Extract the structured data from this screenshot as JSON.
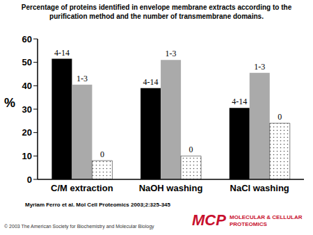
{
  "chart_data": {
    "type": "bar",
    "title": "Percentage of proteins identified in envelope membrane extracts according to the purification method and the number of transmembrane domains.",
    "y_label": "%",
    "categories": [
      "C/M extraction",
      "NaOH washing",
      "NaCl washing"
    ],
    "series": [
      {
        "name": "4-14",
        "color": "#000000",
        "values": [
          51.5,
          39,
          30.5
        ]
      },
      {
        "name": "1-3",
        "color": "#aaaaaa",
        "values": [
          40.5,
          51,
          45.5
        ]
      },
      {
        "name": "0",
        "color": "#555555",
        "values": [
          8,
          10,
          24
        ]
      }
    ],
    "ylim": [
      0,
      60
    ],
    "yticks": [
      0,
      10,
      20,
      30,
      40,
      50,
      60
    ],
    "grid": false
  },
  "source": "Myriam Ferro et al. Mol Cell Proteomics 2003;2:325-345",
  "copyright": "© 2003 The American Society for Biochemistry and Molecular Biology",
  "journal_logo": "MCP",
  "journal_name": [
    "MOLECULAR & CELLULAR",
    "PROTEOMICS"
  ]
}
